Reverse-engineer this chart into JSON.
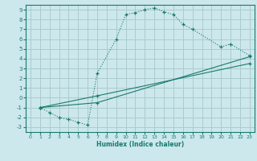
{
  "xlabel": "Humidex (Indice chaleur)",
  "bg_color": "#cce8ec",
  "grid_color": "#aacccc",
  "line_color": "#1a7a6e",
  "xlim": [
    -0.5,
    23.5
  ],
  "ylim": [
    -3.5,
    9.5
  ],
  "xticks": [
    0,
    1,
    2,
    3,
    4,
    5,
    6,
    7,
    8,
    9,
    10,
    11,
    12,
    13,
    14,
    15,
    16,
    17,
    18,
    19,
    20,
    21,
    22,
    23
  ],
  "yticks": [
    -3,
    -2,
    -1,
    0,
    1,
    2,
    3,
    4,
    5,
    6,
    7,
    8,
    9
  ],
  "series1_x": [
    1,
    2,
    3,
    4,
    5,
    6,
    7,
    9,
    10,
    11,
    12,
    13,
    14,
    15,
    16,
    17,
    20,
    21,
    23
  ],
  "series1_y": [
    -1,
    -1.5,
    -2,
    -2.2,
    -2.5,
    -2.8,
    2.5,
    6.0,
    8.5,
    8.7,
    9.0,
    9.2,
    8.8,
    8.5,
    7.5,
    7.0,
    5.2,
    5.5,
    4.3
  ],
  "series2_x": [
    1,
    7,
    23
  ],
  "series2_y": [
    -1,
    -0.5,
    4.2
  ],
  "series3_x": [
    1,
    7,
    23
  ],
  "series3_y": [
    -1,
    0.2,
    3.5
  ]
}
